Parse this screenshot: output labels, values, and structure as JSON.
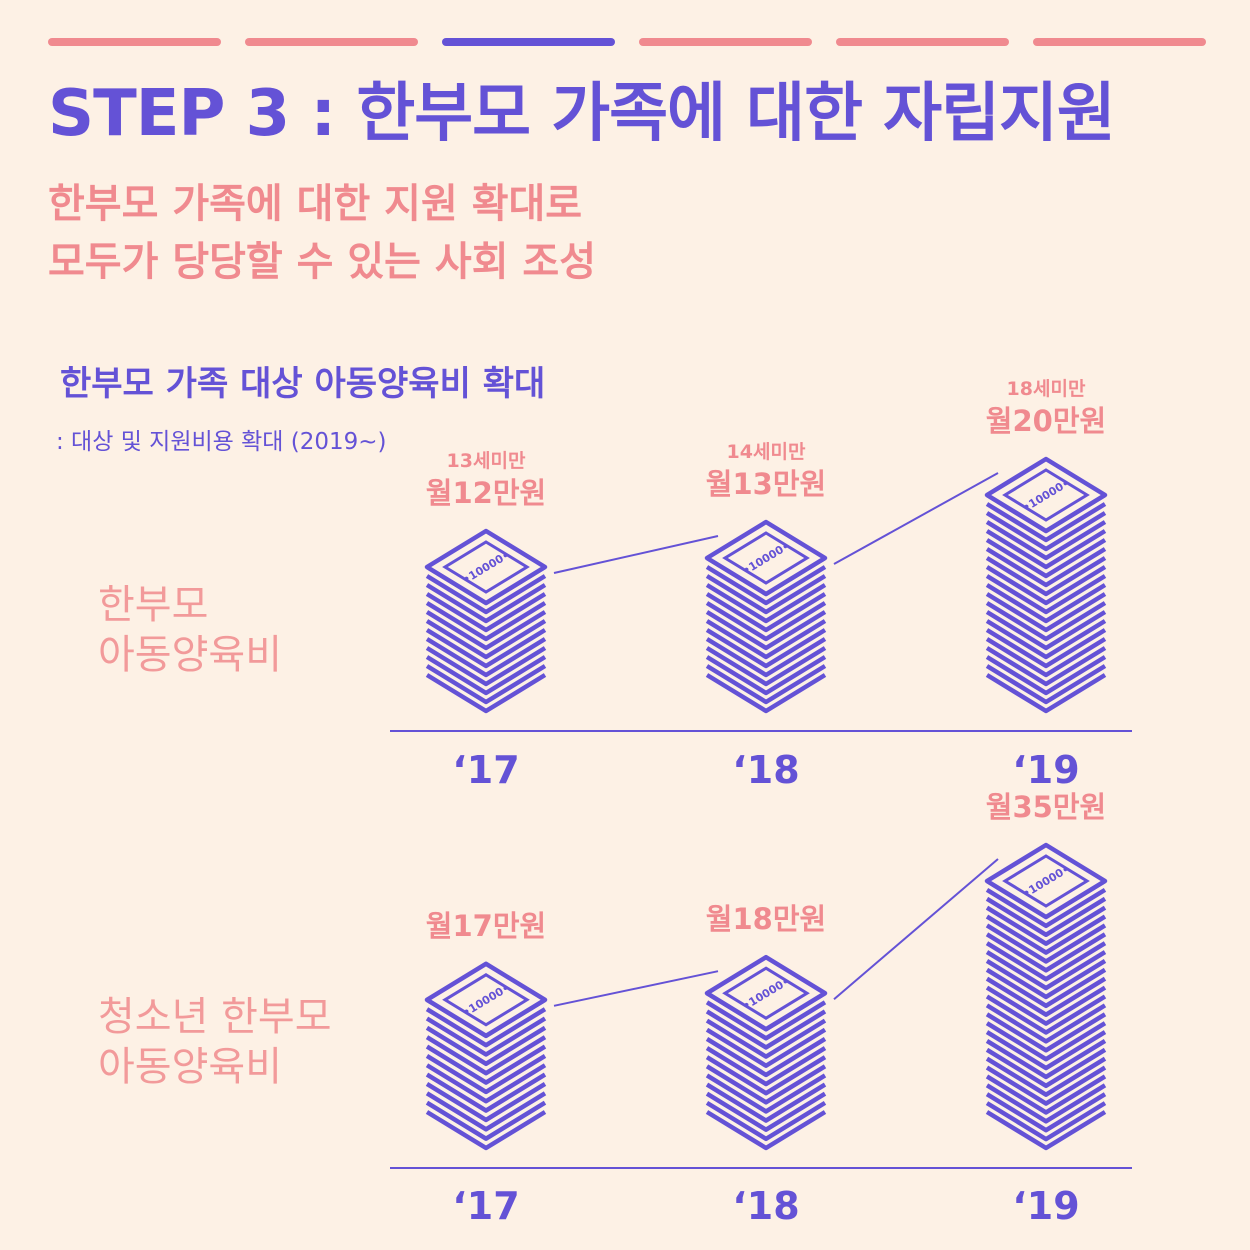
{
  "colors": {
    "purple": "#6452d6",
    "pink": "#f08a8f",
    "pink_light": "#f29a9a",
    "bg": "#fdf1e5"
  },
  "progress": {
    "total_steps": 6,
    "current_step": 3
  },
  "header": {
    "title": "STEP 3 : 한부모 가족에 대한 자립지원",
    "subtitle_line1": "한부모 가족에 대한 지원 확대로",
    "subtitle_line2": "모두가 당당할 수 있는 사회 조성"
  },
  "section": {
    "title": "한부모 가족 대상 아동양육비 확대",
    "note": ":  대상 및 지원비용 확대 (2019~)"
  },
  "chart_data": [
    {
      "type": "bar",
      "row_label_line1": "한부모",
      "row_label_line2": "아동양육비",
      "categories": [
        "‘17",
        "‘18",
        "‘19"
      ],
      "values": [
        12,
        13,
        20
      ],
      "unit_labels": [
        "월12만원",
        "월13만원",
        "월20만원"
      ],
      "eligibility": [
        "13세미만",
        "14세미만",
        "18세미만"
      ],
      "bill_label": "10000"
    },
    {
      "type": "bar",
      "row_label_line1": "청소년 한부모",
      "row_label_line2": "아동양육비",
      "categories": [
        "‘17",
        "‘18",
        "‘19"
      ],
      "values": [
        17,
        18,
        35
      ],
      "unit_labels": [
        "월17만원",
        "월18만원",
        "월35만원"
      ],
      "eligibility": [
        "",
        "",
        ""
      ],
      "bill_label": "10000"
    }
  ]
}
